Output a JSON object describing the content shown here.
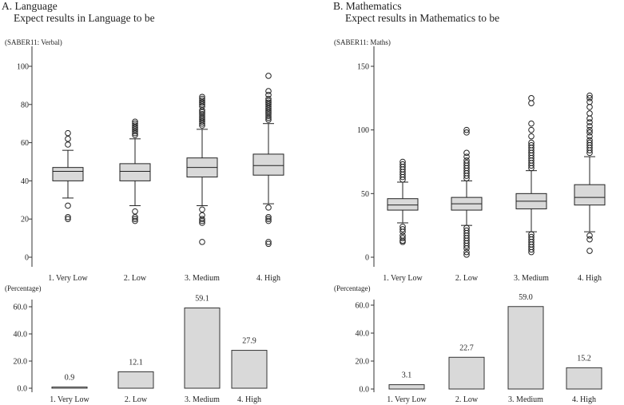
{
  "chart_data": [
    {
      "id": "A-box",
      "type": "boxplot",
      "panel_letter": "A. Language",
      "title": "Expect results in Language to be",
      "ylabel": "(SABER11: Verbal)",
      "ylim": [
        0,
        100
      ],
      "yticks": [
        0,
        20,
        40,
        60,
        80,
        100
      ],
      "categories": [
        "1. Very Low",
        "2. Low",
        "3. Medium",
        "4. High"
      ],
      "boxes": [
        {
          "q1": 40,
          "median": 45,
          "q3": 47,
          "whisker_low": 31,
          "whisker_high": 56,
          "outliers_low": [
            27,
            21,
            20
          ],
          "outliers_high": [
            59,
            62,
            65
          ]
        },
        {
          "q1": 40,
          "median": 45,
          "q3": 49,
          "whisker_low": 27,
          "whisker_high": 62,
          "outliers_low": [
            24,
            21,
            20,
            19
          ],
          "outliers_high": [
            64,
            65,
            66,
            67,
            68,
            69,
            70,
            71
          ]
        },
        {
          "q1": 42,
          "median": 47,
          "q3": 52,
          "whisker_low": 27,
          "whisker_high": 67,
          "outliers_low": [
            25,
            22,
            20,
            19,
            18,
            8
          ],
          "outliers_high": [
            69,
            70,
            71,
            72,
            73,
            74,
            75,
            76,
            77,
            79,
            80,
            81,
            82,
            83,
            84
          ]
        },
        {
          "q1": 43,
          "median": 48,
          "q3": 54,
          "whisker_low": 28,
          "whisker_high": 70,
          "outliers_low": [
            26,
            21,
            20,
            19,
            8,
            7
          ],
          "outliers_high": [
            72,
            73,
            74,
            75,
            76,
            77,
            78,
            79,
            80,
            81,
            82,
            83,
            85,
            87,
            95
          ]
        }
      ]
    },
    {
      "id": "A-bar",
      "type": "bar",
      "ylabel": "(Percentage)",
      "ylim": [
        0,
        60
      ],
      "yticks": [
        "0.0",
        "20.0",
        "40.0",
        "60.0"
      ],
      "categories": [
        "1. Very Low",
        "2. Low",
        "3. Medium",
        "4. High"
      ],
      "values": [
        0.9,
        12.1,
        59.1,
        27.9
      ],
      "value_labels": [
        "0.9",
        "12.1",
        "59.1",
        "27.9"
      ]
    },
    {
      "id": "B-box",
      "type": "boxplot",
      "panel_letter": "B. Mathematics",
      "title": "Expect results in Mathematics to be",
      "ylabel": "(SABER11: Maths)",
      "ylim": [
        0,
        150
      ],
      "yticks": [
        0,
        50,
        100,
        150
      ],
      "categories": [
        "1. Very Low",
        "2. Low",
        "3. Medium",
        "4. High"
      ],
      "boxes": [
        {
          "q1": 37,
          "median": 41,
          "q3": 46,
          "whisker_low": 27,
          "whisker_high": 59,
          "outliers_low": [
            24,
            22,
            20,
            17,
            15,
            13,
            12
          ],
          "outliers_high": [
            61,
            63,
            65,
            67,
            69,
            71,
            73,
            75
          ]
        },
        {
          "q1": 37,
          "median": 42,
          "q3": 47,
          "whisker_low": 25,
          "whisker_high": 60,
          "outliers_low": [
            23,
            21,
            19,
            17,
            15,
            13,
            11,
            9,
            7,
            4,
            2
          ],
          "outliers_high": [
            62,
            64,
            66,
            68,
            70,
            72,
            74,
            76,
            79,
            82,
            98,
            100
          ]
        },
        {
          "q1": 38,
          "median": 44,
          "q3": 50,
          "whisker_low": 20,
          "whisker_high": 68,
          "outliers_low": [
            18,
            16,
            14,
            12,
            10,
            8,
            6,
            4
          ],
          "outliers_high": [
            70,
            72,
            74,
            76,
            78,
            80,
            82,
            84,
            86,
            88,
            90,
            95,
            100,
            105,
            121,
            125
          ]
        },
        {
          "q1": 41,
          "median": 47,
          "q3": 57,
          "whisker_low": 20,
          "whisker_high": 79,
          "outliers_low": [
            17,
            14,
            5
          ],
          "outliers_high": [
            82,
            84,
            86,
            88,
            90,
            92,
            95,
            98,
            100,
            103,
            106,
            109,
            113,
            118,
            122,
            125,
            127
          ]
        }
      ]
    },
    {
      "id": "B-bar",
      "type": "bar",
      "ylabel": "(Percentage)",
      "ylim": [
        0,
        60
      ],
      "yticks": [
        "0.0",
        "20.0",
        "40.0",
        "60.0"
      ],
      "categories": [
        "1. Very Low",
        "2. Low",
        "3. Medium",
        "4. High"
      ],
      "values": [
        3.1,
        22.7,
        59.0,
        15.2
      ],
      "value_labels": [
        "3.1",
        "22.7",
        "59.0",
        "15.2"
      ]
    }
  ]
}
